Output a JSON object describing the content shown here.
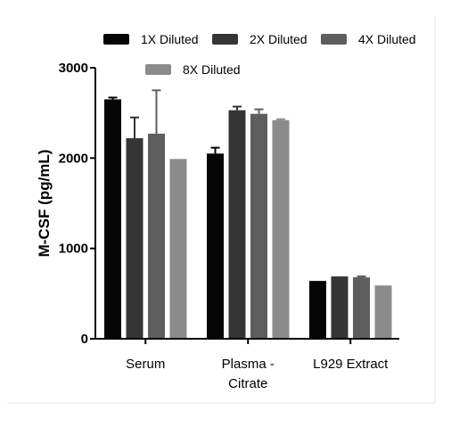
{
  "chart_data": {
    "type": "bar",
    "title": "",
    "xlabel": "",
    "ylabel": "M-CSF (pg/mL)",
    "ylim": [
      0,
      3000
    ],
    "yticks": [
      "0",
      "1000",
      "2000",
      "3000"
    ],
    "categories": [
      "Serum",
      "Plasma - Citrate",
      "L929 Extract"
    ],
    "category_lines": [
      [
        "Serum"
      ],
      [
        "Plasma -",
        "Citrate"
      ],
      [
        "L929 Extract"
      ]
    ],
    "legend_position": "top",
    "grid": false,
    "series": [
      {
        "name": "1X Diluted",
        "color": "#050505",
        "values": [
          2650,
          2050,
          640
        ],
        "errors": [
          20,
          65,
          0
        ]
      },
      {
        "name": "2X Diluted",
        "color": "#353535",
        "values": [
          2220,
          2530,
          690
        ],
        "errors": [
          230,
          40,
          0
        ]
      },
      {
        "name": "4X Diluted",
        "color": "#5e5e5e",
        "values": [
          2270,
          2490,
          680
        ],
        "errors": [
          480,
          50,
          10
        ]
      },
      {
        "name": "8X Diluted",
        "color": "#8b8b8b",
        "values": [
          1990,
          2420,
          590
        ],
        "errors": [
          0,
          10,
          0
        ]
      }
    ]
  }
}
